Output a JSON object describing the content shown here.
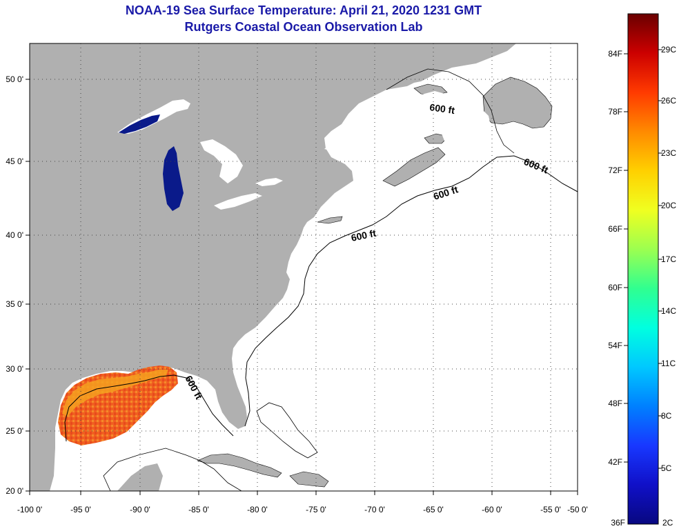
{
  "header": {
    "title_line1": "NOAA-19 Sea Surface Temperature:  April 21, 2020 1231 GMT",
    "title_line2": "Rutgers Coastal Ocean Observation Lab"
  },
  "map": {
    "lon_ticks": [
      "-100 0'",
      "-95 0'",
      "-90 0'",
      "-85 0'",
      "-80 0'",
      "-75 0'",
      "-70 0'",
      "-65 0'",
      "-60 0'",
      "-55 0'",
      "-50 0'"
    ],
    "lat_ticks": [
      "20 0'",
      "25 0'",
      "30 0'",
      "35 0'",
      "40 0'",
      "45 0'",
      "50 0'"
    ],
    "contour_labels": [
      "600 ft",
      "600 ft",
      "600 ft",
      "600 ft",
      "600 ft"
    ],
    "colors": {
      "land": "#b0b0b0",
      "ocean": "#ffffff",
      "lake": "#0a1a8a"
    }
  },
  "colorbar": {
    "fahrenheit": [
      "84F",
      "78F",
      "72F",
      "66F",
      "60F",
      "54F",
      "48F",
      "42F",
      "36F"
    ],
    "celsius": [
      "29C",
      "26C",
      "23C",
      "20C",
      "17C",
      "14C",
      "11C",
      "8C",
      "5C",
      "2C"
    ],
    "gradient_colors": [
      "#6a0000",
      "#cc0000",
      "#ff3a00",
      "#ff8a00",
      "#ffd000",
      "#f0ff20",
      "#9cff50",
      "#30ff90",
      "#00ffe0",
      "#00c8ff",
      "#0080ff",
      "#1838ff",
      "#1010c8",
      "#080880"
    ]
  }
}
